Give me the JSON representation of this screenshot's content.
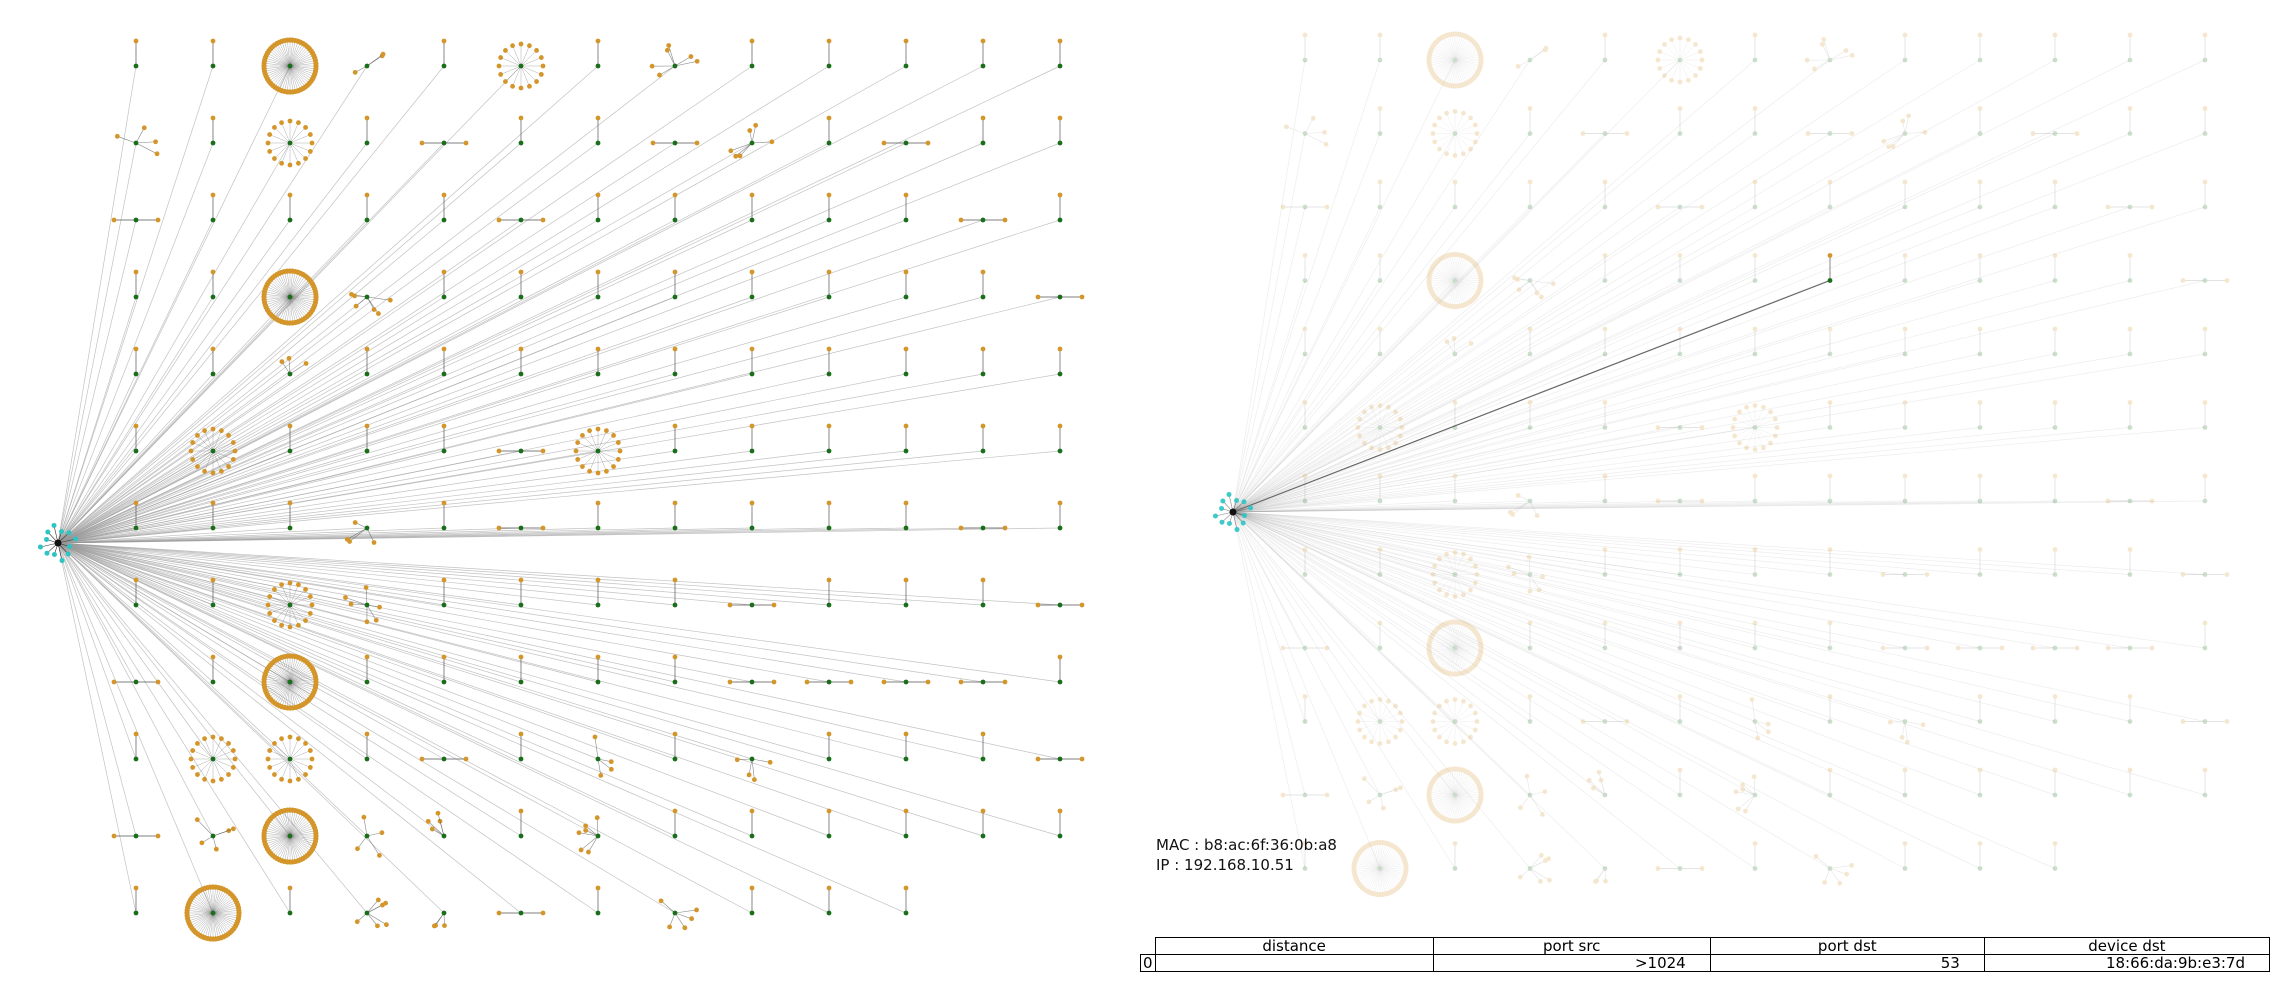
{
  "device": {
    "mac_line": "MAC : b8:ac:6f:36:0b:a8",
    "ip_line": "IP : 192.168.10.51"
  },
  "table": {
    "headers": [
      "distance",
      "port src",
      "port dst",
      "device dst"
    ],
    "rows": [
      {
        "index": "0",
        "distance": "",
        "port_src": ">1024",
        "port_dst": "53",
        "device_dst": "18:66:da:9b:e3:7d"
      }
    ]
  },
  "colors": {
    "hub_node": "#2ec4c4",
    "device_node": "#1a6e1a",
    "port_node": "#d4962a",
    "edge": "#999999",
    "highlight_edge": "#555555"
  },
  "graph": {
    "left_panel": "full network graph",
    "right_panel": "network graph with one highlighted connection"
  }
}
